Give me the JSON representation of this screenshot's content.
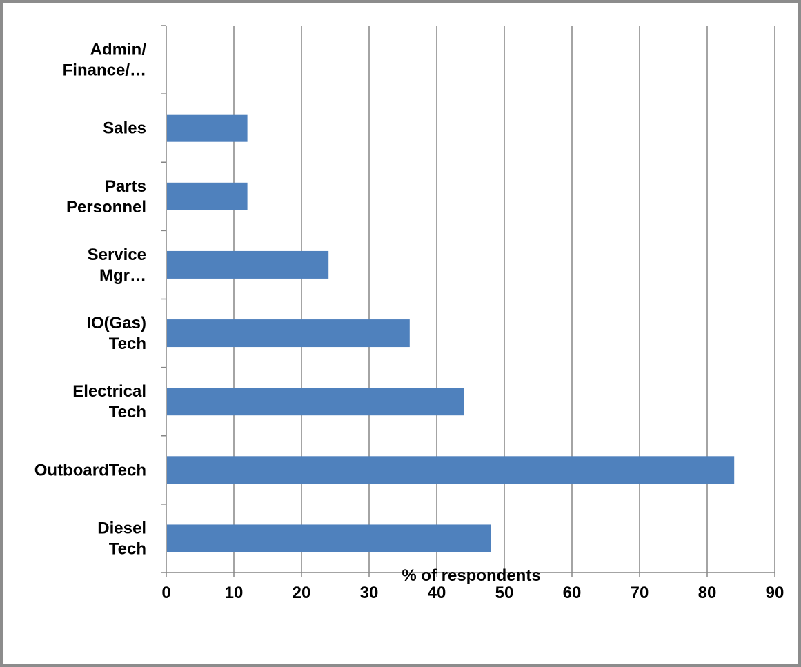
{
  "chart_data": {
    "type": "bar",
    "orientation": "horizontal",
    "categories": [
      [
        "Diesel",
        "Tech"
      ],
      [
        "OutboardTech"
      ],
      [
        "Electrical",
        "Tech"
      ],
      [
        "IO(Gas)",
        "Tech"
      ],
      [
        "Service",
        "Mgr…"
      ],
      [
        "Parts",
        "Personnel"
      ],
      [
        "Sales"
      ],
      [
        "Admin/",
        "Finance/…"
      ]
    ],
    "values": [
      48,
      84,
      44,
      36,
      24,
      12,
      12,
      0
    ],
    "xlabel": "% of respondents",
    "ylabel": "",
    "xlim": [
      0,
      90
    ],
    "xticks": [
      "0",
      "10",
      "20",
      "30",
      "40",
      "50",
      "60",
      "70",
      "80",
      "90"
    ],
    "grid": "vertical",
    "legend": "none",
    "bar_color": "#4f81bd",
    "grid_color": "#868686"
  }
}
